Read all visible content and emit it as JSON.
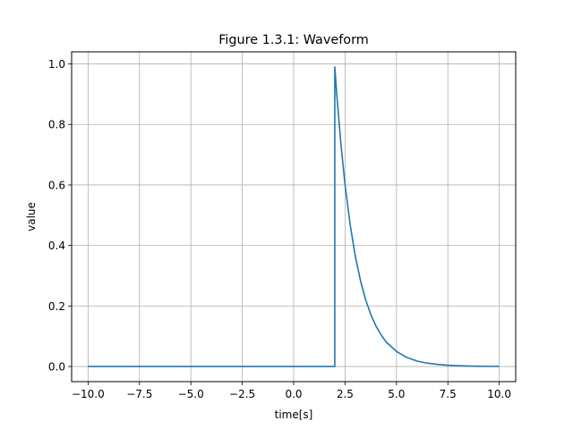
{
  "chart_data": {
    "type": "line",
    "title": "Figure 1.3.1: Waveform",
    "xlabel": "time[s]",
    "ylabel": "value",
    "xlim": [
      -10.8,
      10.8
    ],
    "ylim": [
      -0.05,
      1.04
    ],
    "grid": true,
    "x_ticks": [
      -10.0,
      -7.5,
      -5.0,
      -2.5,
      0.0,
      2.5,
      5.0,
      7.5,
      10.0
    ],
    "x_tick_labels": [
      "−10.0",
      "−7.5",
      "−5.0",
      "−2.5",
      "0.0",
      "2.5",
      "5.0",
      "7.5",
      "10.0"
    ],
    "y_ticks": [
      0.0,
      0.2,
      0.4,
      0.6,
      0.8,
      1.0
    ],
    "y_tick_labels": [
      "0.0",
      "0.2",
      "0.4",
      "0.6",
      "0.8",
      "1.0"
    ],
    "series": [
      {
        "color": "#1f77b4",
        "x": [
          -10.0,
          -5.0,
          0.0,
          2.0,
          2.0,
          2.1,
          2.3,
          2.5,
          2.75,
          3.0,
          3.25,
          3.5,
          3.75,
          4.0,
          4.25,
          4.5,
          5.0,
          5.5,
          6.0,
          6.5,
          7.0,
          7.5,
          8.0,
          8.5,
          9.0,
          9.5,
          10.0
        ],
        "y": [
          0.0,
          0.0,
          0.0,
          0.0,
          0.99,
          0.896,
          0.734,
          0.6,
          0.468,
          0.364,
          0.284,
          0.221,
          0.172,
          0.134,
          0.105,
          0.081,
          0.05,
          0.03,
          0.018,
          0.011,
          0.007,
          0.004,
          0.0025,
          0.0015,
          0.0009,
          0.0006,
          0.0003
        ]
      }
    ]
  }
}
